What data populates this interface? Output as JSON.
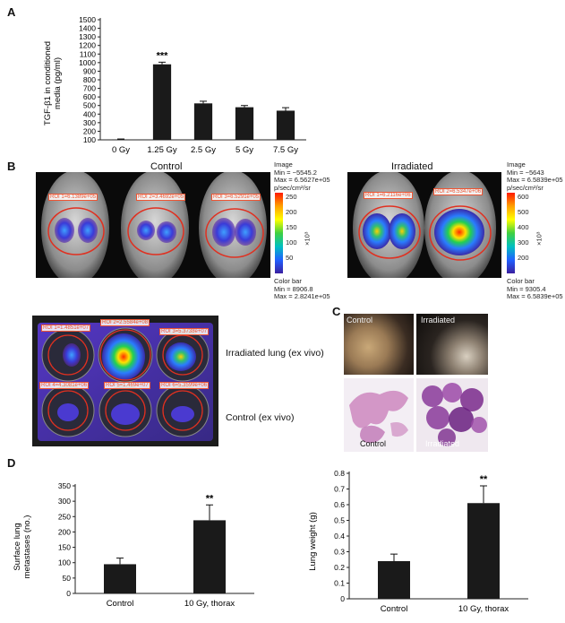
{
  "panels": {
    "a_letter": "A",
    "b_letter": "B",
    "c_letter": "C",
    "d_letter": "D"
  },
  "chart_data": [
    {
      "type": "bar",
      "panel": "A",
      "categories": [
        "0 Gy",
        "1.25 Gy",
        "2.5 Gy",
        "5 Gy",
        "7.5 Gy"
      ],
      "values": [
        105,
        980,
        525,
        480,
        440
      ],
      "errors": [
        5,
        25,
        25,
        20,
        35
      ],
      "annotations": [
        {
          "category": "1.25 Gy",
          "text": "***"
        }
      ],
      "ylabel": "TGF-β1 in conditioned media (pg/ml)",
      "ylabel_line1": "TGF-β1 in conditioned",
      "ylabel_line2": "media (pg/ml)",
      "yticks": [
        100,
        200,
        300,
        400,
        500,
        600,
        700,
        800,
        900,
        1000,
        1100,
        1200,
        1300,
        1400,
        1500
      ],
      "ylim": [
        100,
        1500
      ],
      "color": "#1a1a1a"
    },
    {
      "type": "bar",
      "panel": "D-left",
      "categories": [
        "Control",
        "10 Gy, thorax"
      ],
      "values": [
        95,
        238
      ],
      "errors": [
        20,
        50
      ],
      "annotations": [
        {
          "category": "10 Gy, thorax",
          "text": "**"
        }
      ],
      "ylabel": "Surface lung metastases (no.)",
      "ylabel_line1": "Surface lung",
      "ylabel_line2": "metastases (no.)",
      "yticks": [
        0,
        50,
        100,
        150,
        200,
        250,
        300,
        350
      ],
      "ylim": [
        0,
        350
      ],
      "color": "#1a1a1a"
    },
    {
      "type": "bar",
      "panel": "D-right",
      "categories": [
        "Control",
        "10 Gy, thorax"
      ],
      "values": [
        0.24,
        0.61
      ],
      "errors": [
        0.045,
        0.11
      ],
      "annotations": [
        {
          "category": "10 Gy, thorax",
          "text": "**"
        }
      ],
      "ylabel": "Lung weight (g)",
      "yticks": [
        0,
        0.1,
        0.2,
        0.3,
        0.4,
        0.5,
        0.6,
        0.7,
        0.8
      ],
      "ylim": [
        0,
        0.8
      ],
      "color": "#1a1a1a"
    }
  ],
  "panel_b": {
    "control_title": "Control",
    "irradiated_title": "Irradiated",
    "control_rois": [
      "ROI 1=6.1389e+05",
      "ROI 2=3.4692e+05",
      "ROI 3=6.5291e+05"
    ],
    "irradiated_rois": [
      "ROI 1=6.2116e+06",
      "ROI 2=6.5347e+06"
    ],
    "control_colorbar": {
      "top_lines": [
        "Image",
        "Min = −5545.2",
        "Max = 6.5627e+05",
        "p/sec/cm²/sr"
      ],
      "ticks": [
        "250",
        "200",
        "150",
        "100",
        "50"
      ],
      "unit": "×10³",
      "bottom_lines": [
        "Color bar",
        "Min = 8906.8",
        "Max = 2.8241e+05"
      ]
    },
    "irradiated_colorbar": {
      "top_lines": [
        "Image",
        "Min = −5643",
        "Max = 6.5839e+05",
        "p/sec/cm²/sr"
      ],
      "ticks": [
        "600",
        "500",
        "400",
        "300",
        "200"
      ],
      "unit": "×10³",
      "bottom_lines": [
        "Color bar",
        "Min = 9305.4",
        "Max = 6.5839e+05"
      ]
    },
    "exvivo_rois": [
      "ROI 1=1.4851e+07",
      "ROI 2=2.5584e+08",
      "ROI 3=5.3738e+07",
      "ROI 4=4.3081e+06",
      "ROI 5=1.469e+07",
      "ROI 6=5.3599e+06"
    ],
    "exvivo_label_irradiated": "Irradiated lung (ex vivo)",
    "exvivo_label_control": "Control (ex vivo)"
  },
  "panel_c": {
    "top_left": "Control",
    "top_right": "Irradiated",
    "bottom_left": "Control",
    "bottom_right": "Irradiated"
  }
}
